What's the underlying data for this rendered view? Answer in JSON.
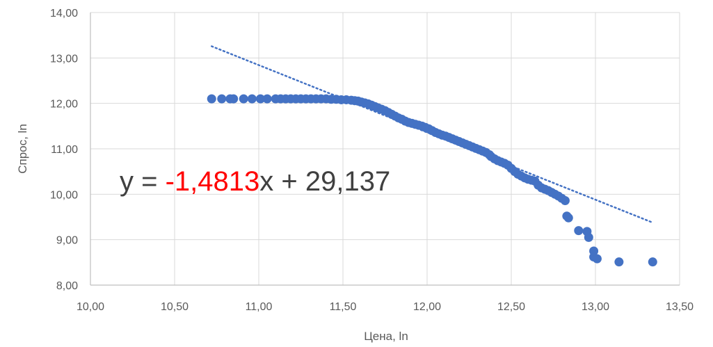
{
  "chart_data": {
    "type": "scatter",
    "title": "",
    "xlabel": "Цена, ln",
    "ylabel": "Спрос, ln",
    "xlim": [
      10.0,
      13.5
    ],
    "ylim": [
      8.0,
      14.0
    ],
    "x_ticks": [
      "10,00",
      "10,50",
      "11,00",
      "11,50",
      "12,00",
      "12,50",
      "13,00",
      "13,50"
    ],
    "y_ticks": [
      "8,00",
      "9,00",
      "10,00",
      "11,00",
      "12,00",
      "13,00",
      "14,00"
    ],
    "grid": true,
    "legend": "none",
    "colors": {
      "points": "#4472c4",
      "trendline": "#4472c4",
      "coef_highlight": "#ff0000",
      "equation_text": "#404040",
      "grid": "#d9d9d9"
    },
    "series": [
      {
        "x": [
          10.72,
          10.78,
          10.83,
          10.85,
          10.91,
          10.96,
          11.01,
          11.05,
          11.1,
          11.13,
          11.16,
          11.19,
          11.22,
          11.25,
          11.28,
          11.31,
          11.34,
          11.37,
          11.4,
          11.43,
          11.46,
          11.49,
          11.52,
          11.55,
          11.57,
          11.59,
          11.61,
          11.63,
          11.65,
          11.67,
          11.69,
          11.71,
          11.73,
          11.75,
          11.77,
          11.79,
          11.81,
          11.83,
          11.85,
          11.87,
          11.89,
          11.91,
          11.93,
          11.95,
          11.97,
          11.99,
          12.01,
          12.03,
          12.05,
          12.07,
          12.09,
          12.11,
          12.13,
          12.15,
          12.17,
          12.19,
          12.21,
          12.23,
          12.25,
          12.27,
          12.29,
          12.31,
          12.33,
          12.35,
          12.37,
          12.38,
          12.4,
          12.42,
          12.44,
          12.46,
          12.48,
          12.5,
          12.52,
          12.54,
          12.56,
          12.58,
          12.6,
          12.62,
          12.64,
          12.66,
          12.68,
          12.7,
          12.72,
          12.74,
          12.76,
          12.78,
          12.8,
          12.82,
          12.83,
          12.84,
          12.9,
          12.95,
          12.96,
          12.99,
          12.99,
          13.01,
          13.14,
          13.34
        ],
        "y": [
          12.1,
          12.1,
          12.1,
          12.1,
          12.1,
          12.1,
          12.1,
          12.1,
          12.1,
          12.1,
          12.1,
          12.1,
          12.1,
          12.1,
          12.1,
          12.1,
          12.1,
          12.1,
          12.1,
          12.09,
          12.09,
          12.08,
          12.08,
          12.07,
          12.06,
          12.05,
          12.03,
          12.01,
          11.99,
          11.96,
          11.93,
          11.9,
          11.87,
          11.84,
          11.8,
          11.76,
          11.72,
          11.68,
          11.65,
          11.61,
          11.58,
          11.56,
          11.54,
          11.52,
          11.5,
          11.47,
          11.44,
          11.4,
          11.36,
          11.33,
          11.3,
          11.28,
          11.25,
          11.22,
          11.19,
          11.16,
          11.13,
          11.1,
          11.07,
          11.04,
          11.01,
          10.98,
          10.95,
          10.92,
          10.87,
          10.83,
          10.78,
          10.74,
          10.71,
          10.68,
          10.64,
          10.57,
          10.5,
          10.44,
          10.4,
          10.36,
          10.33,
          10.31,
          10.29,
          10.2,
          10.14,
          10.11,
          10.08,
          10.04,
          10.0,
          9.96,
          9.91,
          9.86,
          9.52,
          9.48,
          9.2,
          9.18,
          9.05,
          8.75,
          8.62,
          8.58,
          8.51,
          8.51
        ]
      }
    ],
    "trendline": {
      "x_range": [
        10.72,
        13.34
      ],
      "equation": {
        "prefix": "y = ",
        "coef": "-1,4813",
        "suffix": "x + 29,137"
      },
      "slope": -1.4813,
      "intercept": 29.137
    }
  }
}
